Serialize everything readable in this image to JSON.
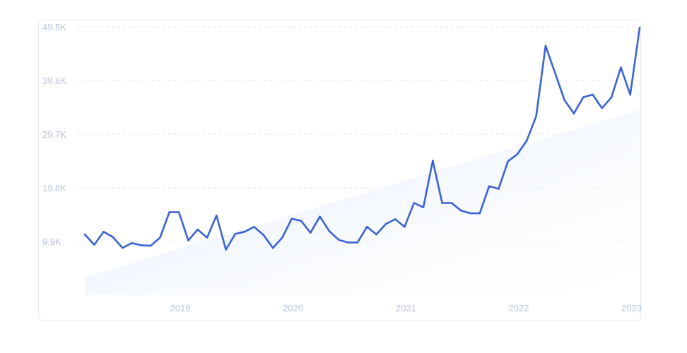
{
  "colors": {
    "line": "#3a63d3",
    "trend_start": "#dde9fb",
    "trend_end": "#ffffff",
    "grid": "#dfe5ef",
    "tick": "#b9c3d9"
  },
  "chart_data": {
    "type": "line",
    "title": "",
    "xlabel": "",
    "ylabel": "",
    "grid": true,
    "y_ticks": [
      "9.9K",
      "19.8K",
      "29.7K",
      "39.6K",
      "49.5K"
    ],
    "y_tick_values": [
      9900,
      19800,
      29700,
      39600,
      49500
    ],
    "x_ticks": [
      "2019",
      "2020",
      "2021",
      "2022",
      "2023"
    ],
    "ylim": [
      0,
      49500
    ],
    "xlim": [
      "2018-07",
      "2023-05"
    ],
    "series": [
      {
        "type": "line",
        "x": [
          "2018-07",
          "2018-08",
          "2018-09",
          "2018-10",
          "2018-11",
          "2018-12",
          "2019-01",
          "2019-02",
          "2019-03",
          "2019-04",
          "2019-05",
          "2019-06",
          "2019-07",
          "2019-08",
          "2019-09",
          "2019-10",
          "2019-11",
          "2019-12",
          "2020-01",
          "2020-02",
          "2020-03",
          "2020-04",
          "2020-05",
          "2020-06",
          "2020-07",
          "2020-08",
          "2020-09",
          "2020-10",
          "2020-11",
          "2020-12",
          "2021-01",
          "2021-02",
          "2021-03",
          "2021-04",
          "2021-05",
          "2021-06",
          "2021-07",
          "2021-08",
          "2021-09",
          "2021-10",
          "2021-11",
          "2021-12",
          "2022-01",
          "2022-02",
          "2022-03",
          "2022-04",
          "2022-05",
          "2022-06",
          "2022-07",
          "2022-08",
          "2022-09",
          "2022-10",
          "2022-11",
          "2022-12",
          "2023-01",
          "2023-02",
          "2023-03",
          "2023-04",
          "2023-05",
          "2023-06"
        ],
        "values": [
          11200,
          9300,
          11700,
          10700,
          8700,
          9600,
          9200,
          9100,
          10600,
          15300,
          15300,
          10100,
          12100,
          10600,
          14700,
          8400,
          11300,
          11700,
          12600,
          11100,
          8700,
          10600,
          14100,
          13700,
          11500,
          14500,
          11800,
          10200,
          9700,
          9700,
          12600,
          11200,
          13100,
          14000,
          12600,
          17000,
          16200,
          24800,
          17000,
          17000,
          15600,
          15100,
          15100,
          20100,
          19600,
          24700,
          26000,
          28500,
          33000,
          46000,
          41000,
          36000,
          33500,
          36500,
          37000,
          34500,
          36500,
          42000,
          37000,
          49300
        ]
      },
      {
        "type": "area",
        "name": "",
        "x": [
          "2018-07",
          "2023-06"
        ],
        "values": [
          3300,
          34200
        ]
      }
    ]
  }
}
